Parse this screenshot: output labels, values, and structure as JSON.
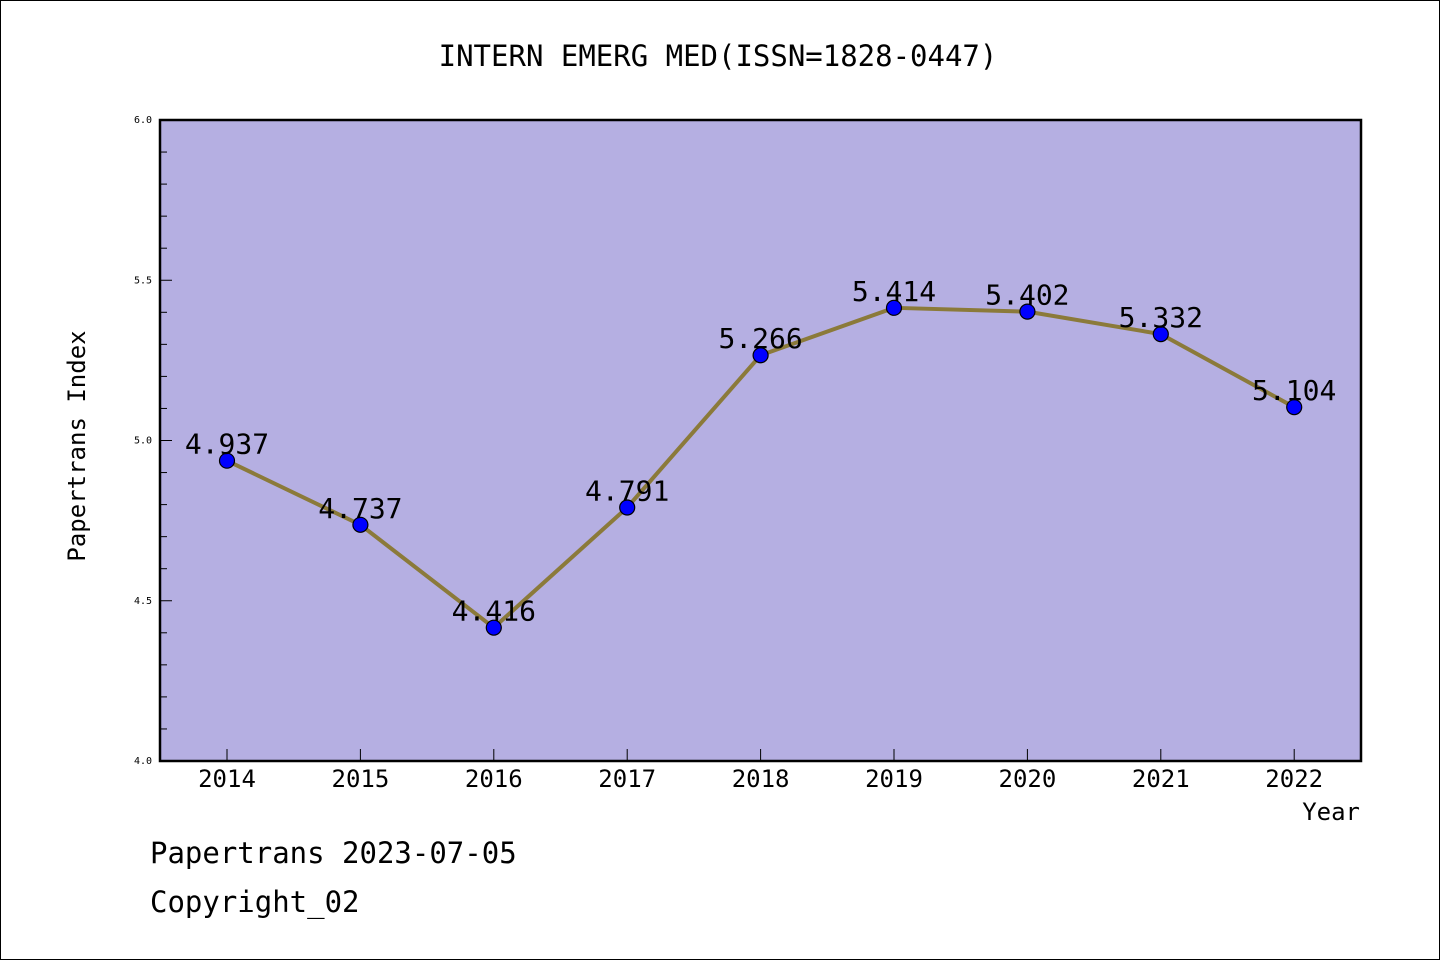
{
  "chart_data": {
    "type": "line",
    "title": "INTERN EMERG MED(ISSN=1828-0447)",
    "xlabel": "Year",
    "ylabel": "Papertrans Index",
    "ylim": [
      4.0,
      6.0
    ],
    "yticks": [
      "4.0",
      "4.5",
      "5.0",
      "5.5",
      "6.0"
    ],
    "grid": false,
    "categories": [
      "2014",
      "2015",
      "2016",
      "2017",
      "2018",
      "2019",
      "2020",
      "2021",
      "2022"
    ],
    "values": [
      4.937,
      4.737,
      4.416,
      4.791,
      5.266,
      5.414,
      5.402,
      5.332,
      5.104
    ],
    "value_labels": [
      "4.937",
      "4.737",
      "4.416",
      "4.791",
      "5.266",
      "5.414",
      "5.402",
      "5.332",
      "5.104"
    ],
    "colors": {
      "plot_background": "#b5afe2",
      "line": "#8b7a3a",
      "marker": "#0000ff"
    }
  },
  "footer": {
    "date_text": "Papertrans 2023-07-05",
    "copyright_text": "Copyright_02"
  }
}
